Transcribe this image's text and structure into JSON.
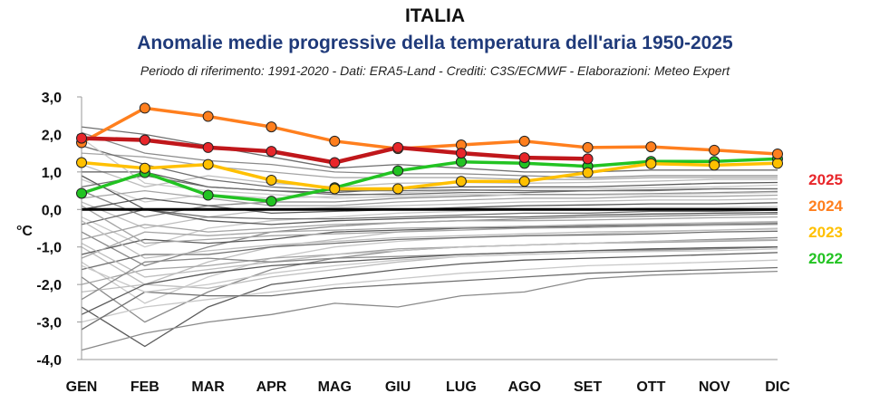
{
  "chart_data": {
    "type": "line",
    "title": "ITALIA",
    "subtitle": "Anomalie medie progressive della temperatura dell'aria 1950-2025",
    "note": "Periodo di riferimento: 1991-2020 - Dati: ERA5-Land - Crediti: C3S/ECMWF - Elaborazioni: Meteo Expert",
    "ylabel": "°C",
    "ylim": [
      -4,
      3
    ],
    "yticks": [
      "3,0",
      "2,0",
      "1,0",
      "0,0",
      "-1,0",
      "-2,0",
      "-3,0",
      "-4,0"
    ],
    "yticks_values": [
      3,
      2,
      1,
      0,
      -1,
      -2,
      -3,
      -4
    ],
    "categories": [
      "GEN",
      "FEB",
      "MAR",
      "APR",
      "MAG",
      "GIU",
      "LUG",
      "AGO",
      "SET",
      "OTT",
      "NOV",
      "DIC"
    ],
    "series": [
      {
        "name": "2025",
        "color": "#c0171b",
        "marker": "#e8262a",
        "values": [
          1.9,
          1.85,
          1.65,
          1.55,
          1.25,
          1.65,
          1.5,
          1.38,
          1.35,
          null,
          null,
          null
        ]
      },
      {
        "name": "2024",
        "color": "#ff7f1e",
        "marker": "#ff7f1e",
        "values": [
          1.78,
          2.7,
          2.48,
          2.2,
          1.82,
          1.62,
          1.72,
          1.82,
          1.65,
          1.67,
          1.58,
          1.48
        ]
      },
      {
        "name": "2023",
        "color": "#ffc000",
        "marker": "#ffc000",
        "values": [
          1.25,
          1.1,
          1.2,
          0.78,
          0.55,
          0.55,
          0.75,
          0.75,
          0.98,
          1.22,
          1.18,
          1.23
        ]
      },
      {
        "name": "2022",
        "color": "#22c322",
        "marker": "#22c322",
        "values": [
          0.43,
          0.98,
          0.38,
          0.22,
          0.58,
          1.03,
          1.27,
          1.23,
          1.15,
          1.28,
          1.28,
          1.35
        ]
      }
    ],
    "background_series": [
      [
        2.2,
        2.0,
        1.7,
        1.4,
        1.1,
        1.2,
        1.1,
        1.0,
        1.0,
        1.05,
        1.05,
        1.05
      ],
      [
        2.05,
        1.5,
        1.3,
        1.2,
        1.0,
        0.95,
        0.95,
        0.9,
        0.85,
        0.9,
        0.9,
        0.9
      ],
      [
        1.5,
        1.4,
        1.15,
        1.0,
        0.85,
        0.85,
        0.85,
        0.8,
        0.8,
        0.85,
        0.85,
        0.85
      ],
      [
        1.2,
        0.6,
        0.9,
        0.7,
        0.6,
        0.7,
        0.72,
        0.7,
        0.72,
        0.75,
        0.8,
        0.8
      ],
      [
        1.0,
        1.0,
        0.6,
        0.5,
        0.45,
        0.55,
        0.6,
        0.6,
        0.6,
        0.65,
        0.7,
        0.72
      ],
      [
        0.8,
        0.2,
        0.4,
        0.3,
        0.35,
        0.45,
        0.5,
        0.55,
        0.55,
        0.58,
        0.6,
        0.65
      ],
      [
        0.6,
        0.9,
        0.6,
        0.5,
        0.4,
        0.4,
        0.45,
        0.45,
        0.5,
        0.5,
        0.55,
        0.55
      ],
      [
        0.5,
        -0.2,
        0.1,
        0.2,
        0.2,
        0.3,
        0.35,
        0.4,
        0.4,
        0.42,
        0.45,
        0.48
      ],
      [
        0.3,
        0.5,
        0.3,
        0.1,
        0.1,
        0.2,
        0.25,
        0.3,
        0.3,
        0.35,
        0.35,
        0.38
      ],
      [
        0.2,
        -0.5,
        -0.2,
        0.0,
        0.05,
        0.1,
        0.15,
        0.2,
        0.22,
        0.25,
        0.25,
        0.28
      ],
      [
        0.0,
        0.3,
        0.1,
        -0.1,
        -0.05,
        0.0,
        0.05,
        0.1,
        0.12,
        0.15,
        0.15,
        0.18
      ],
      [
        -0.2,
        -1.0,
        -0.5,
        -0.3,
        -0.2,
        -0.1,
        -0.05,
        0.0,
        0.0,
        0.05,
        0.05,
        0.08
      ],
      [
        -0.4,
        0.0,
        -0.2,
        -0.25,
        -0.25,
        -0.2,
        -0.15,
        -0.1,
        -0.1,
        -0.05,
        -0.05,
        -0.02
      ],
      [
        -0.6,
        -1.5,
        -1.0,
        -0.6,
        -0.45,
        -0.35,
        -0.3,
        -0.25,
        -0.2,
        -0.18,
        -0.15,
        -0.12
      ],
      [
        -0.8,
        -0.4,
        -0.6,
        -0.5,
        -0.4,
        -0.35,
        -0.3,
        -0.3,
        -0.28,
        -0.25,
        -0.22,
        -0.2
      ],
      [
        -1.0,
        -2.0,
        -1.4,
        -1.0,
        -0.8,
        -0.6,
        -0.5,
        -0.45,
        -0.4,
        -0.38,
        -0.35,
        -0.32
      ],
      [
        -1.2,
        -0.8,
        -0.9,
        -0.8,
        -0.6,
        -0.55,
        -0.5,
        -0.48,
        -0.45,
        -0.42,
        -0.4,
        -0.38
      ],
      [
        -1.4,
        -2.5,
        -1.8,
        -1.3,
        -1.0,
        -0.85,
        -0.75,
        -0.7,
        -0.65,
        -0.6,
        -0.55,
        -0.5
      ],
      [
        -1.6,
        -1.2,
        -1.2,
        -1.0,
        -0.9,
        -0.8,
        -0.75,
        -0.7,
        -0.68,
        -0.65,
        -0.6,
        -0.58
      ],
      [
        -1.8,
        -3.0,
        -2.2,
        -1.6,
        -1.3,
        -1.1,
        -1.0,
        -0.95,
        -0.9,
        -0.85,
        -0.8,
        -0.75
      ],
      [
        -2.0,
        -1.6,
        -1.5,
        -1.3,
        -1.2,
        -1.05,
        -1.0,
        -0.95,
        -0.9,
        -0.88,
        -0.85,
        -0.82
      ],
      [
        -2.2,
        -2.0,
        -2.1,
        -1.8,
        -1.6,
        -1.4,
        -1.25,
        -1.2,
        -1.15,
        -1.1,
        -1.05,
        -1.0
      ],
      [
        -2.6,
        -3.65,
        -2.6,
        -2.0,
        -1.8,
        -1.6,
        -1.45,
        -1.35,
        -1.3,
        -1.25,
        -1.2,
        -1.15
      ],
      [
        -3.0,
        -2.6,
        -2.4,
        -2.2,
        -2.0,
        -1.85,
        -1.7,
        -1.6,
        -1.5,
        -1.45,
        -1.4,
        -1.35
      ],
      [
        -3.2,
        -2.2,
        -2.3,
        -2.3,
        -2.1,
        -2.0,
        -1.9,
        -1.8,
        -1.7,
        -1.65,
        -1.6,
        -1.55
      ],
      [
        -3.75,
        -3.3,
        -3.0,
        -2.8,
        -2.5,
        -2.6,
        -2.3,
        -2.2,
        -1.85,
        -1.75,
        -1.7,
        -1.65
      ],
      [
        -1.3,
        -0.6,
        -0.7,
        -0.6,
        -0.55,
        -0.5,
        -0.48,
        -0.45,
        -0.42,
        -0.4,
        -0.38,
        -0.35
      ],
      [
        -0.9,
        -1.8,
        -1.6,
        -1.4,
        -1.2,
        -1.1,
        -1.0,
        -0.95,
        -0.9,
        -0.85,
        -0.82,
        -0.8
      ],
      [
        0.9,
        0.0,
        -0.3,
        -0.4,
        -0.3,
        -0.25,
        -0.2,
        -0.2,
        -0.15,
        -0.12,
        -0.1,
        -0.08
      ],
      [
        -1.5,
        -2.2,
        -2.0,
        -1.7,
        -1.5,
        -1.35,
        -1.25,
        -1.2,
        -1.15,
        -1.12,
        -1.1,
        -1.05
      ],
      [
        1.7,
        1.2,
        0.8,
        0.6,
        0.5,
        0.5,
        0.52,
        0.5,
        0.5,
        0.52,
        0.55,
        0.55
      ],
      [
        -2.4,
        -1.4,
        -1.3,
        -1.4,
        -1.3,
        -1.25,
        -1.2,
        -1.15,
        -1.1,
        -1.08,
        -1.05,
        -1.0
      ],
      [
        0.1,
        -0.9,
        -0.8,
        -0.7,
        -0.65,
        -0.6,
        -0.55,
        -0.5,
        -0.48,
        -0.45,
        -0.42,
        -0.4
      ],
      [
        -0.3,
        -1.3,
        -1.1,
        -0.95,
        -0.85,
        -0.75,
        -0.7,
        -0.65,
        -0.6,
        -0.58,
        -0.55,
        -0.52
      ],
      [
        -2.8,
        -2.0,
        -1.7,
        -1.5,
        -1.4,
        -1.3,
        -1.2,
        -1.15,
        -1.1,
        -1.05,
        -1.02,
        -1.0
      ],
      [
        1.9,
        0.7,
        0.5,
        0.4,
        0.3,
        0.35,
        0.4,
        0.38,
        0.38,
        0.4,
        0.42,
        0.45
      ]
    ]
  }
}
